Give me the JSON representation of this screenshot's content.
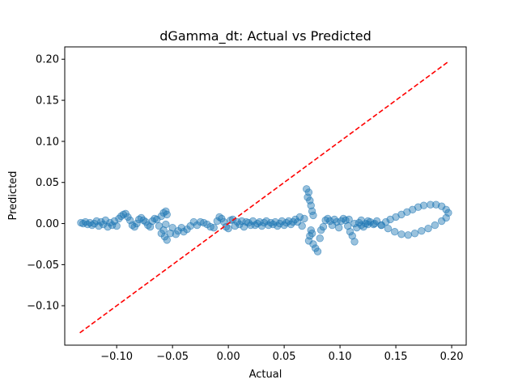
{
  "chart_data": {
    "type": "scatter",
    "title": "dGamma_dt: Actual vs Predicted",
    "xlabel": "Actual",
    "ylabel": "Predicted",
    "xlim": [
      -0.1465,
      0.213
    ],
    "ylim": [
      -0.148,
      0.215
    ],
    "x_ticks": [
      -0.1,
      -0.05,
      0.0,
      0.05,
      0.1,
      0.15,
      0.2
    ],
    "x_tick_labels": [
      "−0.10",
      "−0.05",
      "0.00",
      "0.05",
      "0.10",
      "0.15",
      "0.20"
    ],
    "y_ticks": [
      -0.1,
      -0.05,
      0.0,
      0.05,
      0.1,
      0.15,
      0.2
    ],
    "y_tick_labels": [
      "−0.10",
      "−0.05",
      "0.00",
      "0.05",
      "0.10",
      "0.15",
      "0.20"
    ],
    "grid": false,
    "marker_color": "#1f77b4",
    "marker_alpha": 0.45,
    "reference_line": {
      "x": [
        -0.133,
        0.197
      ],
      "y": [
        -0.133,
        0.197
      ],
      "color": "#ff0000",
      "style": "dashed"
    },
    "series": [
      {
        "points": [
          [
            -0.132,
            0.001
          ],
          [
            -0.13,
            0.0
          ],
          [
            -0.128,
            0.002
          ],
          [
            -0.126,
            -0.001
          ],
          [
            -0.124,
            0.001
          ],
          [
            -0.122,
            -0.002
          ],
          [
            -0.12,
            0.0
          ],
          [
            -0.118,
            0.003
          ],
          [
            -0.116,
            -0.003
          ],
          [
            -0.114,
            0.002
          ],
          [
            -0.112,
            -0.001
          ],
          [
            -0.11,
            0.004
          ],
          [
            -0.108,
            -0.004
          ],
          [
            -0.106,
            0.001
          ],
          [
            -0.104,
            -0.002
          ],
          [
            -0.102,
            0.003
          ],
          [
            -0.1,
            -0.003
          ],
          [
            -0.098,
            0.006
          ],
          [
            -0.096,
            0.009
          ],
          [
            -0.094,
            0.011
          ],
          [
            -0.092,
            0.012
          ],
          [
            -0.09,
            0.008
          ],
          [
            -0.088,
            0.004
          ],
          [
            -0.086,
            -0.002
          ],
          [
            -0.084,
            -0.004
          ],
          [
            -0.082,
            0.0
          ],
          [
            -0.08,
            0.005
          ],
          [
            -0.078,
            0.007
          ],
          [
            -0.076,
            0.004
          ],
          [
            -0.074,
            0.002
          ],
          [
            -0.072,
            -0.002
          ],
          [
            -0.07,
            -0.004
          ],
          [
            -0.068,
            0.003
          ],
          [
            -0.066,
            0.006
          ],
          [
            -0.064,
            0.005
          ],
          [
            -0.062,
            -0.003
          ],
          [
            -0.06,
            0.009
          ],
          [
            -0.058,
            0.013
          ],
          [
            -0.056,
            0.015
          ],
          [
            -0.055,
            0.011
          ],
          [
            -0.056,
            -0.001
          ],
          [
            -0.058,
            -0.008
          ],
          [
            -0.06,
            -0.012
          ],
          [
            -0.057,
            -0.016
          ],
          [
            -0.055,
            -0.02
          ],
          [
            -0.052,
            -0.012
          ],
          [
            -0.05,
            -0.005
          ],
          [
            -0.047,
            -0.013
          ],
          [
            -0.045,
            -0.009
          ],
          [
            -0.042,
            -0.005
          ],
          [
            -0.04,
            -0.01
          ],
          [
            -0.037,
            -0.007
          ],
          [
            -0.034,
            -0.003
          ],
          [
            -0.031,
            0.002
          ],
          [
            -0.028,
            -0.002
          ],
          [
            -0.025,
            0.002
          ],
          [
            -0.022,
            0.001
          ],
          [
            -0.019,
            -0.001
          ],
          [
            -0.016,
            -0.004
          ],
          [
            -0.013,
            -0.005
          ],
          [
            -0.01,
            0.003
          ],
          [
            -0.008,
            0.008
          ],
          [
            -0.006,
            0.006
          ],
          [
            -0.004,
            0.002
          ],
          [
            -0.002,
            -0.004
          ],
          [
            0.0,
            -0.006
          ],
          [
            0.002,
            0.004
          ],
          [
            0.004,
            0.005
          ],
          [
            0.006,
            -0.003
          ],
          [
            0.008,
            0.002
          ],
          [
            0.01,
            -0.001
          ],
          [
            0.012,
            0.003
          ],
          [
            0.014,
            -0.004
          ],
          [
            0.016,
            0.002
          ],
          [
            0.018,
            0.001
          ],
          [
            0.02,
            -0.002
          ],
          [
            0.022,
            0.003
          ],
          [
            0.024,
            -0.002
          ],
          [
            0.026,
            0.0
          ],
          [
            0.028,
            0.002
          ],
          [
            0.03,
            -0.003
          ],
          [
            0.032,
            0.001
          ],
          [
            0.034,
            0.003
          ],
          [
            0.036,
            -0.002
          ],
          [
            0.038,
            0.001
          ],
          [
            0.04,
            -0.001
          ],
          [
            0.042,
            0.002
          ],
          [
            0.044,
            -0.003
          ],
          [
            0.046,
            0.0
          ],
          [
            0.048,
            0.003
          ],
          [
            0.05,
            -0.002
          ],
          [
            0.052,
            0.001
          ],
          [
            0.054,
            0.003
          ],
          [
            0.056,
            -0.001
          ],
          [
            0.058,
            0.002
          ],
          [
            0.06,
            0.005
          ],
          [
            0.062,
            0.002
          ],
          [
            0.064,
            0.008
          ],
          [
            0.066,
            -0.003
          ],
          [
            0.068,
            0.006
          ],
          [
            0.07,
            0.042
          ],
          [
            0.071,
            0.032
          ],
          [
            0.072,
            0.038
          ],
          [
            0.073,
            0.028
          ],
          [
            0.074,
            0.022
          ],
          [
            0.075,
            0.015
          ],
          [
            0.076,
            0.01
          ],
          [
            0.074,
            -0.008
          ],
          [
            0.073,
            -0.015
          ],
          [
            0.072,
            -0.021
          ],
          [
            0.075,
            -0.012
          ],
          [
            0.076,
            -0.025
          ],
          [
            0.078,
            -0.03
          ],
          [
            0.08,
            -0.034
          ],
          [
            0.082,
            -0.018
          ],
          [
            0.083,
            -0.008
          ],
          [
            0.085,
            -0.004
          ],
          [
            0.087,
            0.004
          ],
          [
            0.089,
            0.006
          ],
          [
            0.091,
            0.003
          ],
          [
            0.093,
            -0.002
          ],
          [
            0.095,
            0.005
          ],
          [
            0.097,
            0.002
          ],
          [
            0.099,
            -0.005
          ],
          [
            0.101,
            0.003
          ],
          [
            0.103,
            0.006
          ],
          [
            0.105,
            0.004
          ],
          [
            0.107,
            -0.003
          ],
          [
            0.109,
            -0.01
          ],
          [
            0.111,
            -0.015
          ],
          [
            0.113,
            -0.022
          ],
          [
            0.115,
            -0.005
          ],
          [
            0.117,
            0.001
          ],
          [
            0.119,
            -0.002
          ],
          [
            0.121,
            -0.004
          ],
          [
            0.123,
            0.0
          ],
          [
            0.125,
            -0.001
          ],
          [
            0.127,
            0.002
          ],
          [
            0.13,
            -0.001
          ],
          [
            0.133,
            0.003
          ],
          [
            0.137,
            -0.002
          ],
          [
            0.141,
            0.002
          ],
          [
            0.145,
            0.005
          ],
          [
            0.15,
            0.008
          ],
          [
            0.155,
            0.011
          ],
          [
            0.16,
            0.014
          ],
          [
            0.165,
            0.017
          ],
          [
            0.17,
            0.02
          ],
          [
            0.175,
            0.022
          ],
          [
            0.181,
            0.023
          ],
          [
            0.186,
            0.023
          ],
          [
            0.191,
            0.021
          ],
          [
            0.195,
            0.017
          ],
          [
            0.197,
            0.013
          ],
          [
            0.195,
            0.007
          ],
          [
            0.191,
            0.003
          ],
          [
            0.185,
            -0.002
          ],
          [
            0.179,
            -0.006
          ],
          [
            0.173,
            -0.009
          ],
          [
            0.167,
            -0.012
          ],
          [
            0.161,
            -0.014
          ],
          [
            0.155,
            -0.013
          ],
          [
            0.149,
            -0.01
          ],
          [
            0.143,
            -0.006
          ],
          [
            0.137,
            -0.002
          ],
          [
            0.131,
            0.0
          ],
          [
            0.125,
            0.003
          ],
          [
            0.119,
            0.004
          ],
          [
            0.113,
            0.0
          ],
          [
            0.108,
            0.005
          ]
        ]
      }
    ]
  }
}
